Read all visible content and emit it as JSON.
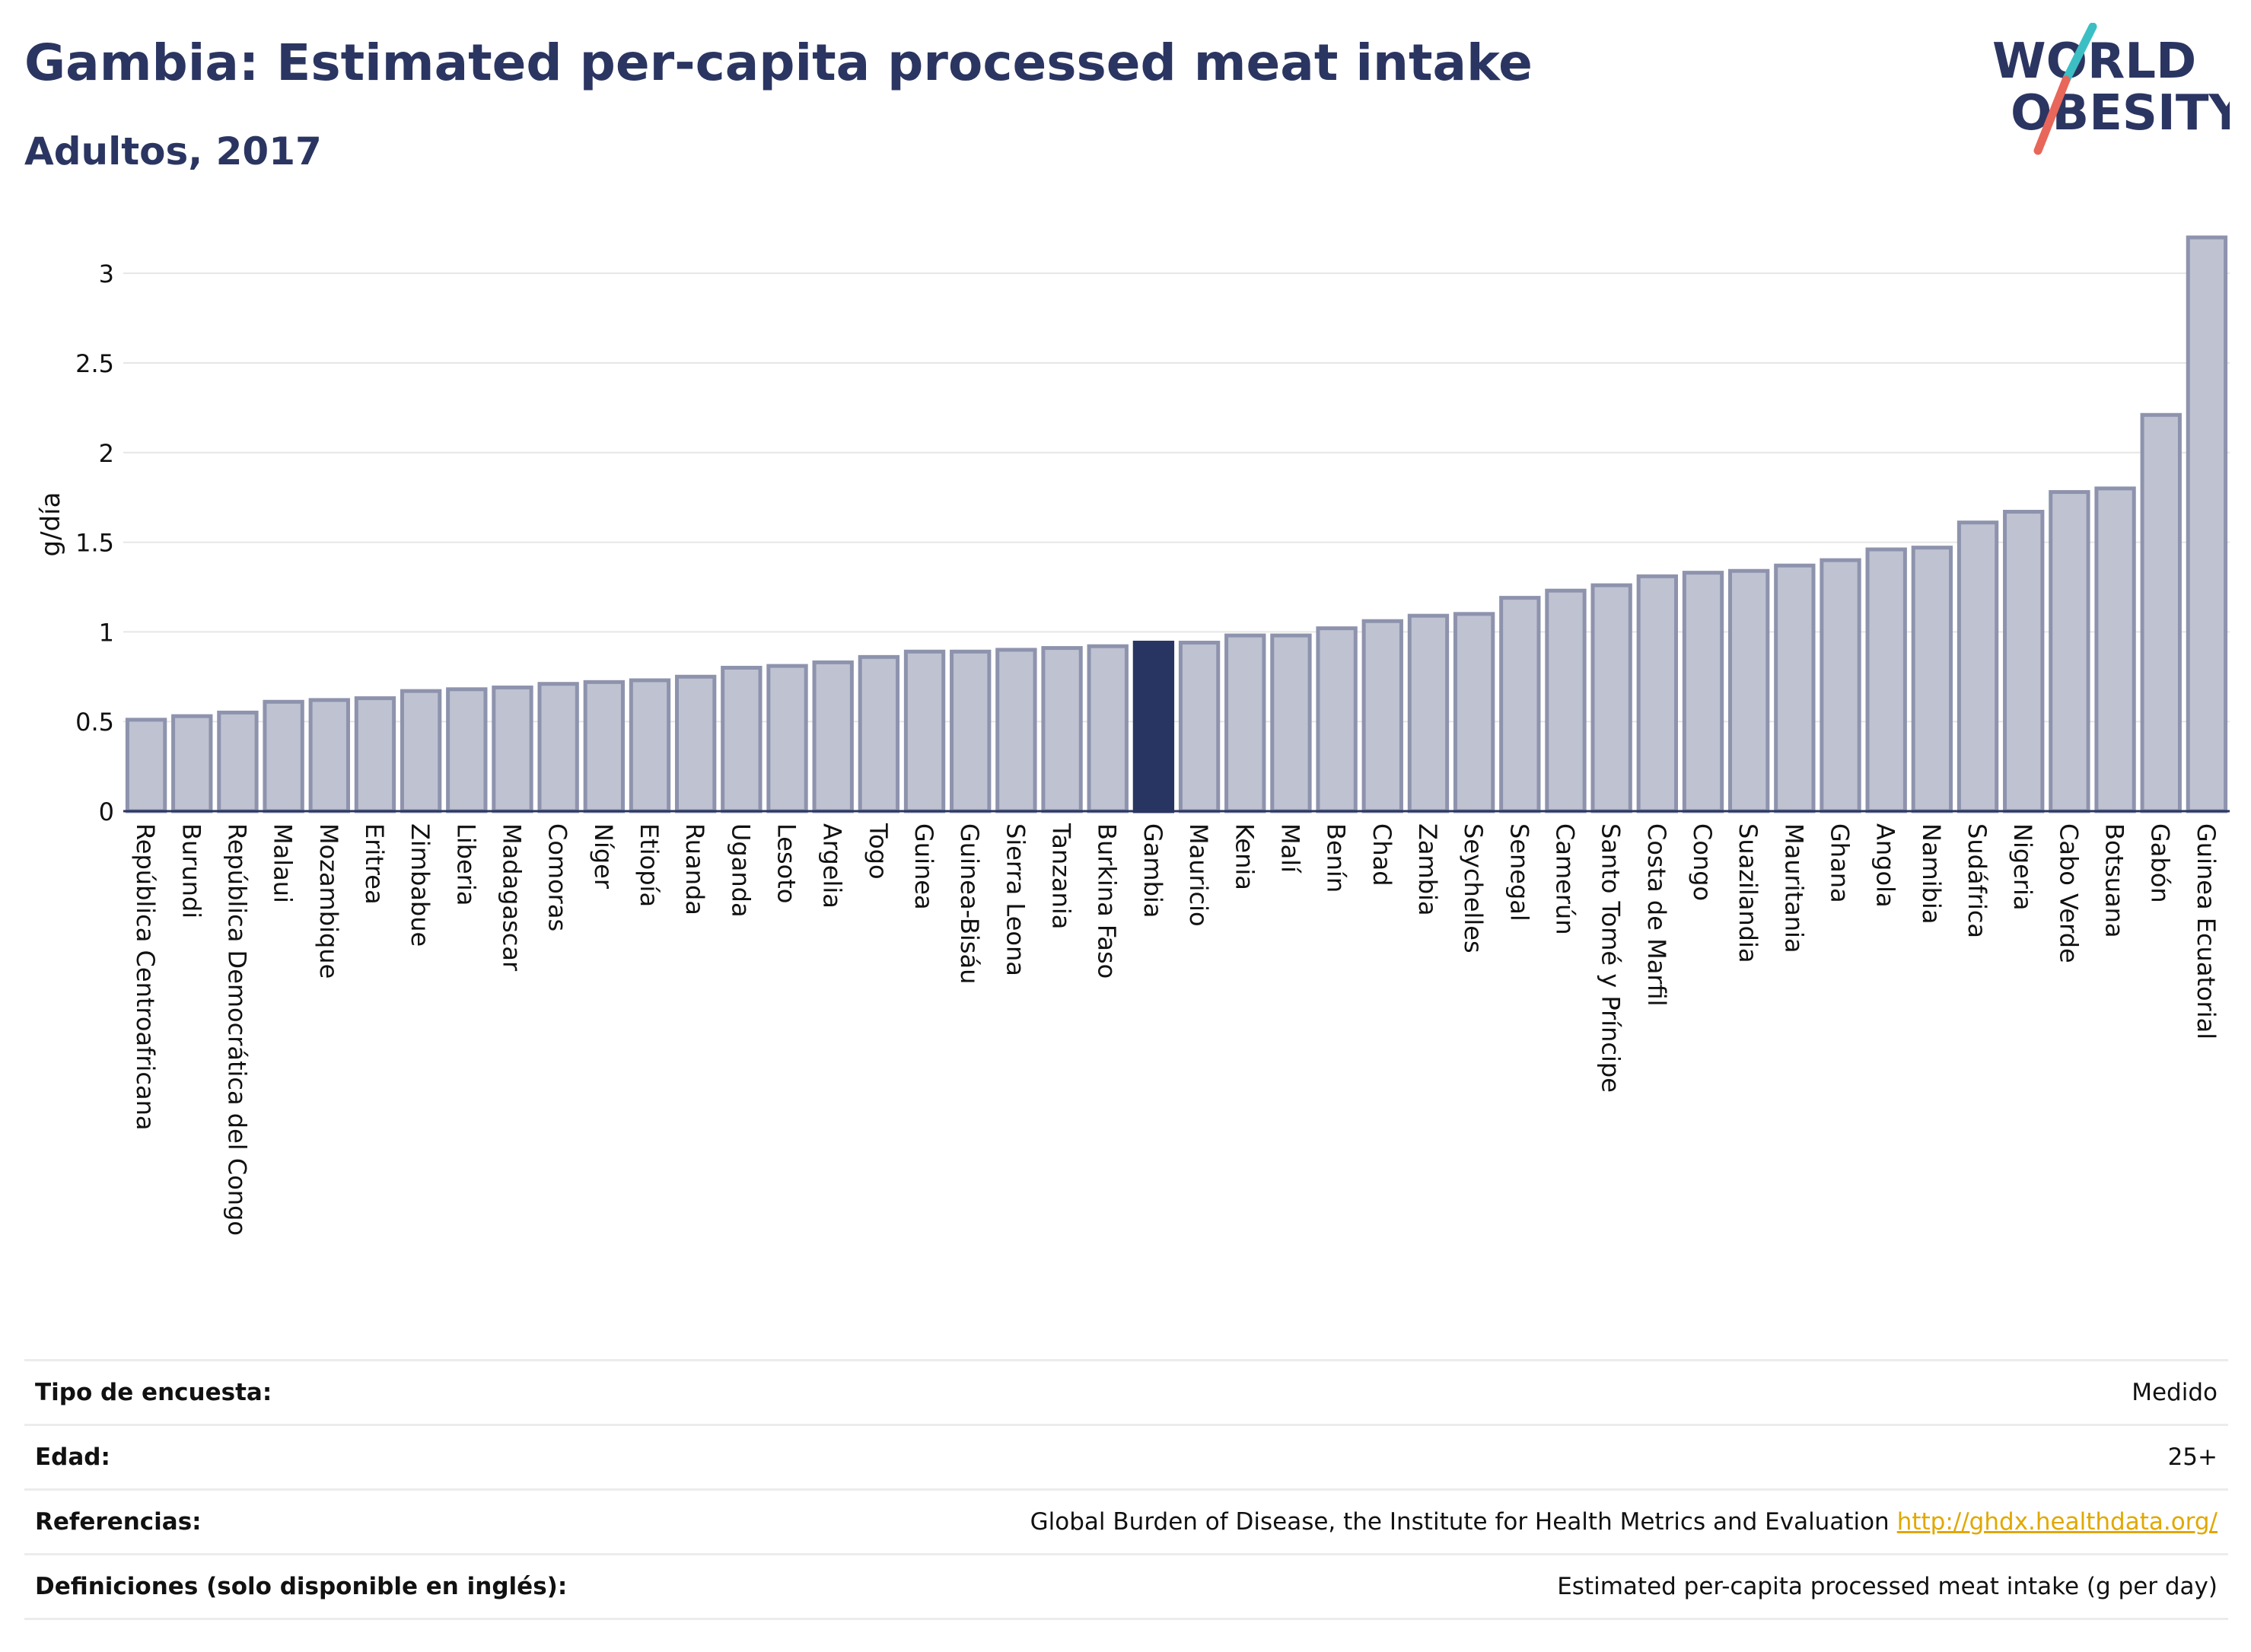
{
  "header": {
    "title": "Gambia: Estimated per-capita processed meat intake",
    "subtitle": "Adultos, 2017"
  },
  "logo": {
    "line1": "WORLD",
    "line2": "OBESITY",
    "colors": {
      "text": "#2b3561",
      "slash_teal": "#3bbfc4",
      "slash_red": "#e8665a"
    }
  },
  "colors": {
    "bar_fill": "#bfc2d1",
    "bar_stroke": "#8e93ad",
    "highlight_fill": "#283562",
    "text": "#2b3561",
    "link": "#e0a800"
  },
  "chart_data": {
    "type": "bar",
    "ylabel": "g/día",
    "ylim": [
      0,
      3.2
    ],
    "yticks": [
      0,
      0.5,
      1,
      1.5,
      2,
      2.5,
      3
    ],
    "ytick_labels": [
      "0",
      "0.5",
      "1",
      "1.5",
      "2",
      "2.5",
      "3"
    ],
    "grid": true,
    "highlight": "Gambia",
    "categories": [
      "República Centroafricana",
      "Burundi",
      "República Democrática del Congo",
      "Malaui",
      "Mozambique",
      "Eritrea",
      "Zimbabue",
      "Liberia",
      "Madagascar",
      "Comoras",
      "Níger",
      "Etiopía",
      "Ruanda",
      "Uganda",
      "Lesoto",
      "Argelia",
      "Togo",
      "Guinea",
      "Guinea-Bisáu",
      "Sierra Leona",
      "Tanzania",
      "Burkina Faso",
      "Gambia",
      "Mauricio",
      "Kenia",
      "Malí",
      "Benín",
      "Chad",
      "Zambia",
      "Seychelles",
      "Senegal",
      "Camerún",
      "Santo Tomé y Príncipe",
      "Costa de Marfil",
      "Congo",
      "Suazilandia",
      "Mauritania",
      "Ghana",
      "Angola",
      "Namibia",
      "Sudáfrica",
      "Nigeria",
      "Cabo Verde",
      "Botsuana",
      "Gabón",
      "Guinea Ecuatorial"
    ],
    "values": [
      0.51,
      0.53,
      0.55,
      0.61,
      0.62,
      0.63,
      0.67,
      0.68,
      0.69,
      0.71,
      0.72,
      0.73,
      0.75,
      0.8,
      0.81,
      0.83,
      0.86,
      0.89,
      0.89,
      0.9,
      0.91,
      0.92,
      0.94,
      0.94,
      0.98,
      0.98,
      1.02,
      1.06,
      1.09,
      1.1,
      1.19,
      1.23,
      1.26,
      1.31,
      1.33,
      1.34,
      1.37,
      1.4,
      1.46,
      1.47,
      1.61,
      1.67,
      1.78,
      1.8,
      2.21,
      3.2
    ]
  },
  "details": {
    "survey_type_label": "Tipo de encuesta:",
    "survey_type_value": "Medido",
    "age_label": "Edad:",
    "age_value": "25+",
    "references_label": "Referencias:",
    "references_value": "Global Burden of Disease, the Institute for Health Metrics and Evaluation",
    "references_link": "http://ghdx.healthdata.org/",
    "definitions_label": "Definiciones (solo disponible en inglés):",
    "definitions_value": "Estimated per-capita processed meat intake (g per day)"
  }
}
